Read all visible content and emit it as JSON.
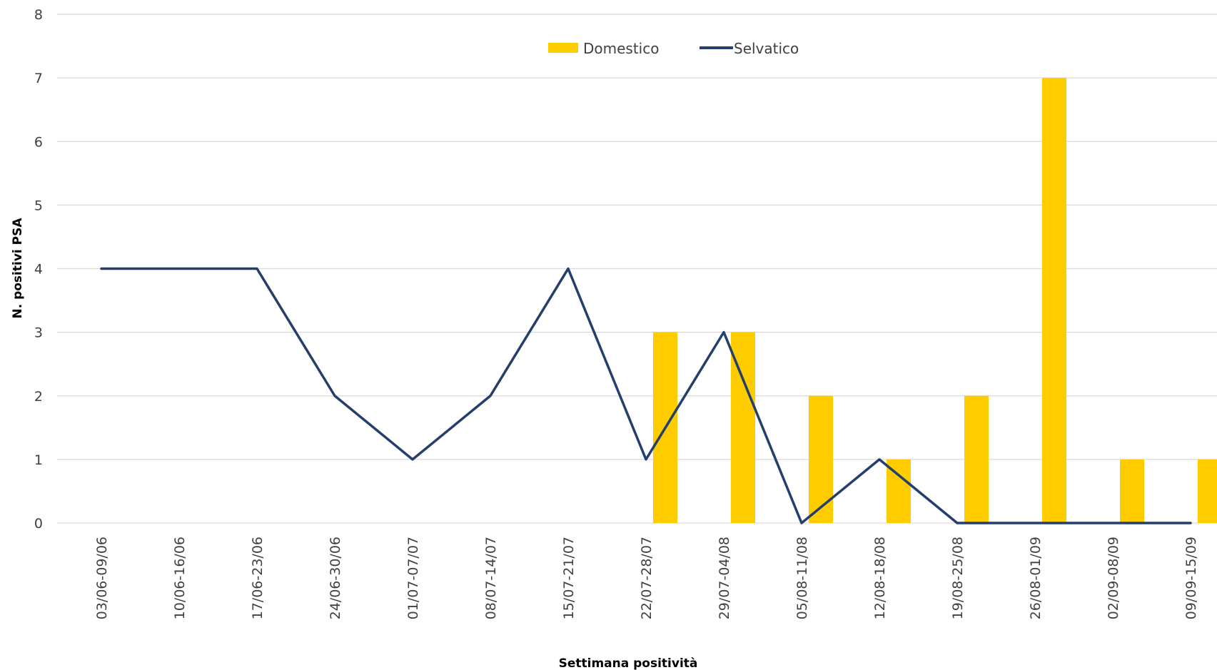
{
  "chart_data": {
    "type": "bar",
    "categories": [
      "03/06-09/06",
      "10/06-16/06",
      "17/06-23/06",
      "24/06-30/06",
      "01/07-07/07",
      "08/07-14/07",
      "15/07-21/07",
      "22/07-28/07",
      "29/07-04/08",
      "05/08-11/08",
      "12/08-18/08",
      "19/08-25/08",
      "26/08-01/09",
      "02/09-08/09",
      "09/09-15/09"
    ],
    "series": [
      {
        "name": "Domestico",
        "type": "bar",
        "color": "#FFCC00",
        "values": [
          0,
          0,
          0,
          0,
          0,
          0,
          0,
          3,
          3,
          2,
          1,
          2,
          7,
          1,
          1
        ]
      },
      {
        "name": "Selvatico",
        "type": "line",
        "color": "#243F6C",
        "values": [
          4,
          4,
          4,
          2,
          1,
          2,
          4,
          1,
          3,
          0,
          1,
          0,
          0,
          0,
          0
        ]
      }
    ],
    "xlabel": "Settimana positività",
    "ylabel": "N. positivi PSA",
    "ylim": [
      0,
      8
    ],
    "yticks": [
      0,
      1,
      2,
      3,
      4,
      5,
      6,
      7,
      8
    ],
    "grid": true,
    "legend_position": "top-center"
  }
}
